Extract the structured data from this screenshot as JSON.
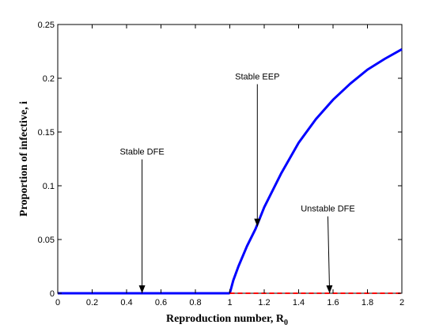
{
  "chart_data": {
    "type": "line",
    "title": "",
    "xlabel": "Reproduction number, R",
    "xlabel_subscript": "0",
    "ylabel": "Proportion of infective, i",
    "xlim": [
      0,
      2
    ],
    "ylim": [
      0,
      0.25
    ],
    "xticks": [
      "0",
      "0.2",
      "0.4",
      "0.6",
      "0.8",
      "1",
      "1.2",
      "1.4",
      "1.6",
      "1.8",
      "2"
    ],
    "yticks": [
      "0",
      "0.05",
      "0.1",
      "0.15",
      "0.2",
      "0.25"
    ],
    "grid": false,
    "series": [
      {
        "style": "solid",
        "color": "#0000ff",
        "x": [
          0,
          0.2,
          0.4,
          0.6,
          0.8,
          1.0
        ],
        "y": [
          0,
          0,
          0,
          0,
          0,
          0
        ]
      },
      {
        "style": "solid",
        "color": "#0000ff",
        "x": [
          1.0,
          1.02,
          1.05,
          1.1,
          1.15,
          1.2,
          1.3,
          1.4,
          1.5,
          1.6,
          1.7,
          1.8,
          1.9,
          2.0
        ],
        "y": [
          0,
          0.012,
          0.025,
          0.044,
          0.06,
          0.08,
          0.112,
          0.14,
          0.162,
          0.18,
          0.195,
          0.208,
          0.218,
          0.227
        ]
      },
      {
        "style": "dashed",
        "color": "#ff0000",
        "x": [
          1.0,
          2.0
        ],
        "y": [
          0,
          0
        ]
      }
    ],
    "annotations": [
      {
        "text": "Stable DFE",
        "text_at": [
          0.49,
          0.126
        ],
        "arrow_to": [
          0.49,
          0.0
        ]
      },
      {
        "text": "Stable EEP",
        "text_at": [
          1.16,
          0.196
        ],
        "arrow_to": [
          1.16,
          0.062
        ]
      },
      {
        "text": "Unstable DFE",
        "text_at": [
          1.57,
          0.073
        ],
        "arrow_to": [
          1.58,
          0.0
        ]
      }
    ]
  }
}
